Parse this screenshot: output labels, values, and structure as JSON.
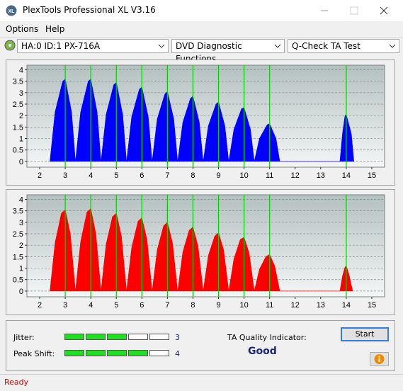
{
  "window": {
    "title": "PlexTools Professional XL V3.16"
  },
  "menu": [
    "Options",
    "Help"
  ],
  "toolbar": {
    "drive": "HA:0 ID:1  PX-716A",
    "function": "DVD Diagnostic Functions",
    "test": "Q-Check TA Test"
  },
  "chart_data": [
    {
      "type": "area",
      "xlim": [
        1.5,
        15.5
      ],
      "ylim": [
        -0.25,
        4.2
      ],
      "xticks": [
        2,
        3,
        4,
        5,
        6,
        7,
        8,
        9,
        10,
        11,
        12,
        13,
        14,
        15
      ],
      "yticks": [
        0,
        0.5,
        1,
        1.5,
        2,
        2.5,
        3,
        3.5,
        4
      ],
      "grid": true,
      "markers": [
        3,
        4,
        5,
        6,
        7,
        8,
        9,
        10,
        11,
        14
      ],
      "marker_color": "#00d000",
      "series": [
        {
          "color": "#0000ff",
          "x": [
            2.4,
            2.6,
            2.9,
            3,
            3.25,
            3.4,
            3.4,
            3.6,
            3.9,
            4,
            4.25,
            4.4,
            4.4,
            4.6,
            4.9,
            5,
            5.25,
            5.4,
            5.4,
            5.6,
            5.9,
            6,
            6.25,
            6.4,
            6.4,
            6.6,
            6.9,
            7,
            7.25,
            7.4,
            7.4,
            7.6,
            7.9,
            8,
            8.25,
            8.4,
            8.4,
            8.6,
            8.9,
            9,
            9.25,
            9.4,
            9.4,
            9.6,
            9.9,
            10,
            10.25,
            10.4,
            10.4,
            10.6,
            10.9,
            11,
            11.25,
            11.4,
            13.75,
            13.85,
            13.95,
            14,
            14.2,
            14.3
          ],
          "values": [
            0,
            2.15,
            3.5,
            3.6,
            2.15,
            0,
            0,
            2.15,
            3.5,
            3.6,
            2.15,
            0,
            0,
            2.05,
            3.35,
            3.45,
            2.05,
            0,
            0,
            1.95,
            3.15,
            3.25,
            1.95,
            0,
            0,
            1.85,
            2.95,
            3.05,
            1.85,
            0,
            0,
            1.7,
            2.75,
            2.85,
            1.7,
            0,
            0,
            1.55,
            2.5,
            2.6,
            1.55,
            0,
            0,
            1.4,
            2.3,
            2.35,
            1.4,
            0,
            0,
            1.0,
            1.6,
            1.65,
            1.0,
            0,
            0,
            1.2,
            2.0,
            2.05,
            1.2,
            0
          ]
        }
      ]
    },
    {
      "type": "area",
      "xlim": [
        1.5,
        15.5
      ],
      "ylim": [
        -0.25,
        4.2
      ],
      "xticks": [
        2,
        3,
        4,
        5,
        6,
        7,
        8,
        9,
        10,
        11,
        12,
        13,
        14,
        15
      ],
      "yticks": [
        0,
        0.5,
        1,
        1.5,
        2,
        2.5,
        3,
        3.5,
        4
      ],
      "grid": true,
      "markers": [
        3,
        4,
        5,
        6,
        7,
        8,
        9,
        10,
        11,
        14
      ],
      "marker_color": "#00d000",
      "series": [
        {
          "color": "#ff0000",
          "x": [
            2.4,
            2.6,
            2.85,
            3,
            3.2,
            3.4,
            3.4,
            3.6,
            3.85,
            4,
            4.2,
            4.4,
            4.4,
            4.6,
            4.85,
            5,
            5.2,
            5.4,
            5.4,
            5.6,
            5.85,
            6,
            6.2,
            6.4,
            6.4,
            6.6,
            6.85,
            7,
            7.2,
            7.4,
            7.4,
            7.6,
            7.85,
            8,
            8.2,
            8.4,
            8.4,
            8.6,
            8.85,
            9,
            9.2,
            9.4,
            9.4,
            9.6,
            9.85,
            10,
            10.2,
            10.4,
            10.4,
            10.6,
            10.85,
            11,
            11.2,
            11.4,
            13.75,
            13.85,
            13.95,
            14,
            14.1,
            14.25
          ],
          "values": [
            0,
            2.1,
            3.4,
            3.55,
            2.5,
            0,
            0,
            2.15,
            3.45,
            3.6,
            2.5,
            0,
            0,
            2.05,
            3.25,
            3.4,
            2.4,
            0,
            0,
            1.9,
            3.05,
            3.2,
            2.25,
            0,
            0,
            1.8,
            2.85,
            3.0,
            2.1,
            0,
            0,
            1.7,
            2.65,
            2.8,
            1.95,
            0,
            0,
            1.55,
            2.4,
            2.55,
            1.8,
            0,
            0,
            1.4,
            2.25,
            2.35,
            1.65,
            0,
            0,
            0.95,
            1.5,
            1.6,
            1.1,
            0,
            0,
            0.65,
            1.05,
            1.1,
            0.75,
            0
          ]
        }
      ]
    }
  ],
  "results": {
    "jitter": {
      "label": "Jitter:",
      "value": 3
    },
    "peak_shift": {
      "label": "Peak Shift:",
      "value": 4
    },
    "quality_label": "TA Quality Indicator:",
    "quality": "Good",
    "start": "Start"
  },
  "status": "Ready"
}
